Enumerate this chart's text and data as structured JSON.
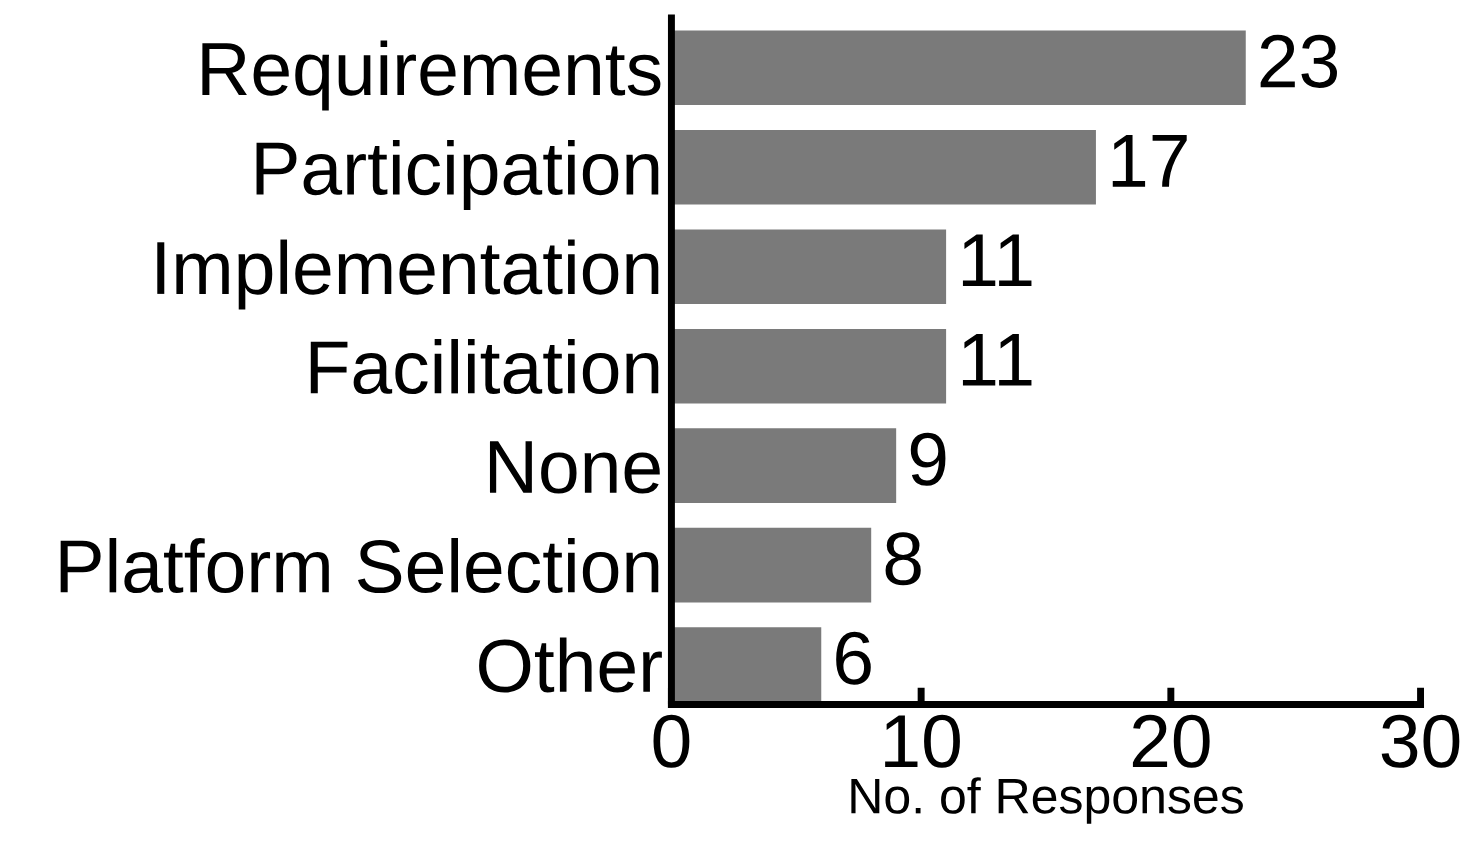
{
  "chart_data": {
    "type": "bar",
    "orientation": "horizontal",
    "categories": [
      "Requirements",
      "Participation",
      "Implementation",
      "Facilitation",
      "None",
      "Platform Selection",
      "Other"
    ],
    "values": [
      23,
      17,
      11,
      11,
      9,
      8,
      6
    ],
    "color": "#7a7a7a",
    "xlabel": "No. of Responses",
    "xlim": [
      0,
      30
    ],
    "xticks": [
      0,
      10,
      20,
      30
    ],
    "data_labels": true,
    "grid": false
  }
}
